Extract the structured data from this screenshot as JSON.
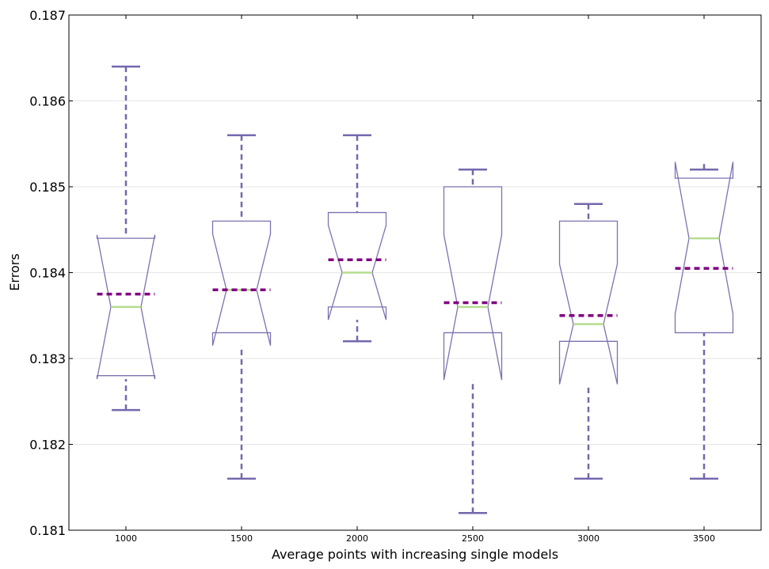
{
  "chart_data": {
    "type": "box",
    "title": "",
    "xlabel": "Average points with increasing single models",
    "ylabel": "Errors",
    "ylim": [
      0.181,
      0.187
    ],
    "y_ticks": [
      "0.181",
      "0.182",
      "0.183",
      "0.184",
      "0.185",
      "0.186",
      "0.187"
    ],
    "y_tick_values": [
      0.181,
      0.182,
      0.183,
      0.184,
      0.185,
      0.186,
      0.187
    ],
    "categories": [
      "1000",
      "1500",
      "2000",
      "2500",
      "3000",
      "3500"
    ],
    "grid": "horizontal",
    "notched": true,
    "colors": {
      "box": "#7b72b0",
      "whisker": "#7467ad",
      "median": "#b5dc8f",
      "mean": "#800080",
      "grid": "#e6e6e6"
    },
    "boxes": [
      {
        "x": "1000",
        "whisker_low": 0.1824,
        "q1": 0.1828,
        "median": 0.1836,
        "q3": 0.1844,
        "whisker_high": 0.1864,
        "notch_low": 0.18276,
        "notch_high": 0.18444,
        "mean": 0.18375
      },
      {
        "x": "1500",
        "whisker_low": 0.1816,
        "q1": 0.1833,
        "median": 0.1838,
        "q3": 0.1846,
        "whisker_high": 0.1856,
        "notch_low": 0.18315,
        "notch_high": 0.18445,
        "mean": 0.1838
      },
      {
        "x": "2000",
        "whisker_low": 0.1832,
        "q1": 0.1836,
        "median": 0.184,
        "q3": 0.1847,
        "whisker_high": 0.1856,
        "notch_low": 0.18345,
        "notch_high": 0.18455,
        "mean": 0.18415
      },
      {
        "x": "2500",
        "whisker_low": 0.1812,
        "q1": 0.1833,
        "median": 0.1836,
        "q3": 0.185,
        "whisker_high": 0.1852,
        "notch_low": 0.18275,
        "notch_high": 0.18444,
        "mean": 0.18365
      },
      {
        "x": "3000",
        "whisker_low": 0.1816,
        "q1": 0.1832,
        "median": 0.1834,
        "q3": 0.1846,
        "whisker_high": 0.1848,
        "notch_low": 0.1827,
        "notch_high": 0.1841,
        "mean": 0.1835
      },
      {
        "x": "3500",
        "whisker_low": 0.1816,
        "q1": 0.1833,
        "median": 0.1844,
        "q3": 0.1851,
        "whisker_high": 0.1852,
        "notch_low": 0.18352,
        "notch_high": 0.18529,
        "mean": 0.18405
      }
    ]
  }
}
